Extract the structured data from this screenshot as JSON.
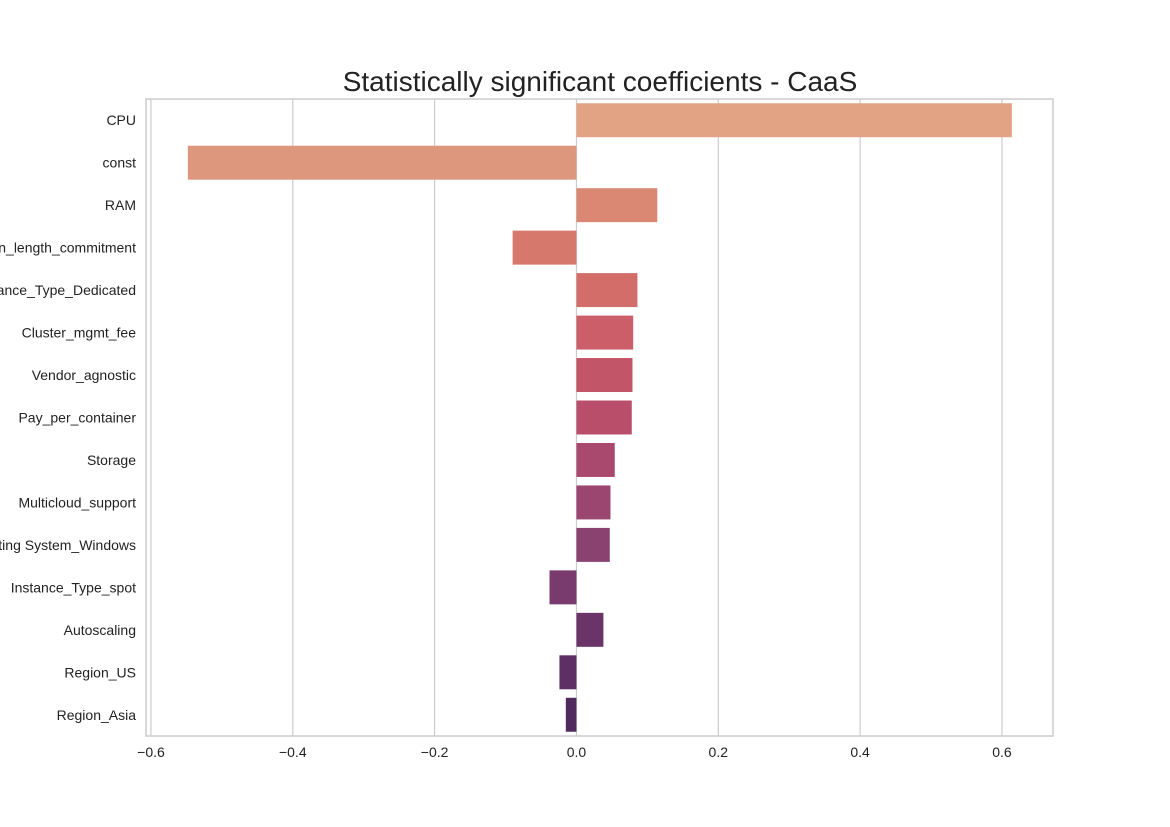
{
  "chart_data": {
    "type": "bar",
    "orientation": "horizontal",
    "title": "Statistically significant coefficients - CaaS",
    "xlabel": "",
    "ylabel": "",
    "xlim": [
      -0.607,
      0.672
    ],
    "xticks": [
      -0.6,
      -0.4,
      -0.2,
      0.0,
      0.2,
      0.4,
      0.6
    ],
    "xtick_labels": [
      "−0.6",
      "−0.4",
      "−0.2",
      "0.0",
      "0.2",
      "0.4",
      "0.6"
    ],
    "grid": true,
    "categories": [
      "CPU",
      "const",
      "RAM",
      "n_length_commitment",
      "ance_Type_Dedicated",
      "Cluster_mgmt_fee",
      "Vendor_agnostic",
      "Pay_per_container",
      "Storage",
      "Multicloud_support",
      "ting System_Windows",
      "Instance_Type_spot",
      "Autoscaling",
      "Region_US",
      "Region_Asia"
    ],
    "values": [
      0.614,
      -0.548,
      0.114,
      -0.09,
      0.086,
      0.08,
      0.079,
      0.078,
      0.054,
      0.048,
      0.047,
      -0.038,
      0.038,
      -0.024,
      -0.015
    ],
    "colors": [
      "#e1a384",
      "#dd977c",
      "#da8774",
      "#d6796c",
      "#d26d6a",
      "#cc5e69",
      "#c35568",
      "#b84e6a",
      "#a8496d",
      "#9a4670",
      "#8a4370",
      "#793b6d",
      "#6a3469",
      "#5d2f64",
      "#502a5f"
    ]
  }
}
